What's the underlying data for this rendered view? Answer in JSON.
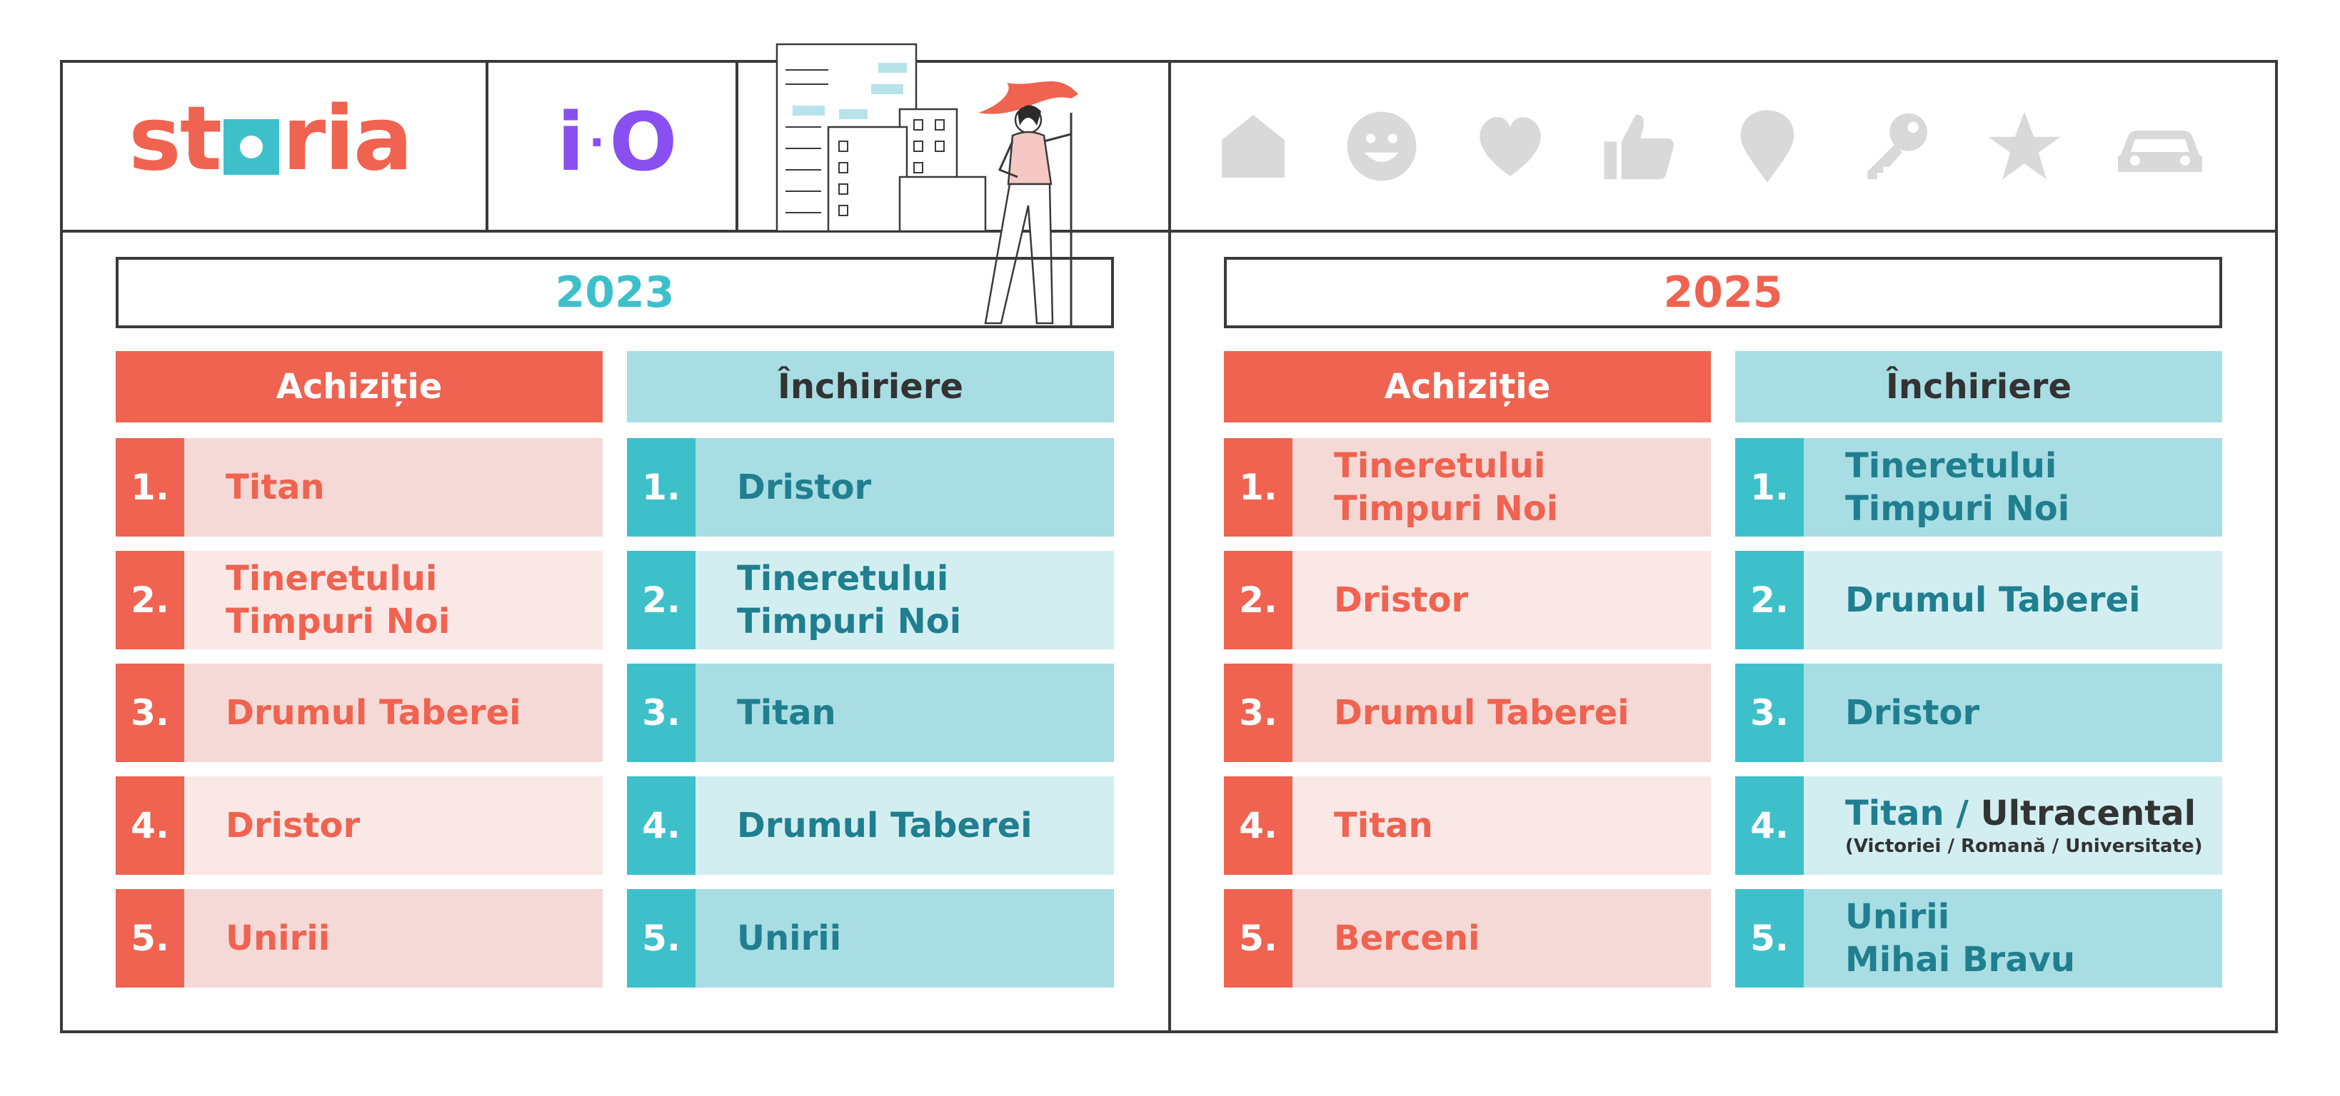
{
  "logos": {
    "storia": {
      "before": "st",
      "after": "ria"
    },
    "io": {
      "left": "i",
      "dot": "·",
      "right": "O"
    }
  },
  "colors": {
    "coral": "#ef6350",
    "coral_light_a": "#f5d9d6",
    "coral_light_b": "#f9e8e6",
    "teal": "#3ec0cb",
    "teal_light_a": "#a8dde4",
    "teal_light_b": "#d3eef1",
    "teal_text": "#1f7f8f",
    "icon_gray": "#d9d9d9",
    "purple": "#8a4ff0"
  },
  "icons": [
    "home-icon",
    "smiley-icon",
    "heart-icon",
    "thumbs-up-icon",
    "map-pin-icon",
    "key-icon",
    "star-icon",
    "car-icon"
  ],
  "panels": [
    {
      "year": "2023",
      "columns": [
        {
          "heading": "Achiziție",
          "rows": [
            {
              "num": "1.",
              "line1": "Titan"
            },
            {
              "num": "2.",
              "line1": "Tineretului",
              "line2": "Timpuri Noi"
            },
            {
              "num": "3.",
              "line1": "Drumul Taberei"
            },
            {
              "num": "4.",
              "line1": "Dristor"
            },
            {
              "num": "5.",
              "line1": "Unirii"
            }
          ]
        },
        {
          "heading": "Închiriere",
          "rows": [
            {
              "num": "1.",
              "line1": "Dristor"
            },
            {
              "num": "2.",
              "line1": "Tineretului",
              "line2": "Timpuri Noi"
            },
            {
              "num": "3.",
              "line1": "Titan"
            },
            {
              "num": "4.",
              "line1": "Drumul Taberei"
            },
            {
              "num": "5.",
              "line1": "Unirii"
            }
          ]
        }
      ]
    },
    {
      "year": "2025",
      "columns": [
        {
          "heading": "Achiziție",
          "rows": [
            {
              "num": "1.",
              "line1": "Tineretului",
              "line2": "Timpuri Noi"
            },
            {
              "num": "2.",
              "line1": "Dristor"
            },
            {
              "num": "3.",
              "line1": "Drumul Taberei"
            },
            {
              "num": "4.",
              "line1": "Titan"
            },
            {
              "num": "5.",
              "line1": "Berceni"
            }
          ]
        },
        {
          "heading": "Închiriere",
          "rows": [
            {
              "num": "1.",
              "line1": "Tineretului",
              "line2": "Timpuri Noi"
            },
            {
              "num": "2.",
              "line1": "Drumul Taberei"
            },
            {
              "num": "3.",
              "line1": "Dristor"
            },
            {
              "num": "4.",
              "line1": "Titan / ",
              "line1_dark": "Ultracental",
              "sub": "(Victoriei / Romană / Universitate)"
            },
            {
              "num": "5.",
              "line1": "Unirii",
              "line2": "Mihai Bravu"
            }
          ]
        }
      ]
    }
  ]
}
